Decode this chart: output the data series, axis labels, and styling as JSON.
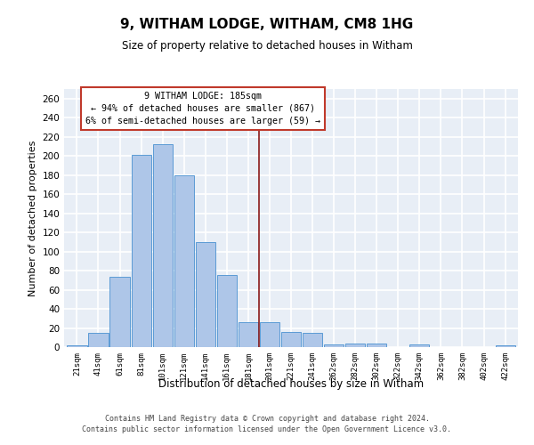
{
  "title": "9, WITHAM LODGE, WITHAM, CM8 1HG",
  "subtitle": "Size of property relative to detached houses in Witham",
  "xlabel": "Distribution of detached houses by size in Witham",
  "ylabel": "Number of detached properties",
  "categories": [
    "21sqm",
    "41sqm",
    "61sqm",
    "81sqm",
    "101sqm",
    "121sqm",
    "141sqm",
    "161sqm",
    "181sqm",
    "201sqm",
    "221sqm",
    "241sqm",
    "262sqm",
    "282sqm",
    "302sqm",
    "322sqm",
    "342sqm",
    "362sqm",
    "382sqm",
    "402sqm",
    "422sqm"
  ],
  "values": [
    2,
    15,
    74,
    201,
    212,
    180,
    110,
    75,
    26,
    26,
    16,
    15,
    3,
    4,
    4,
    0,
    3,
    0,
    0,
    0,
    2
  ],
  "bar_color": "#aec6e8",
  "bar_edge_color": "#5b9bd5",
  "vline_x": 8.5,
  "vline_color": "#8b1a1a",
  "annotation_title": "9 WITHAM LODGE: 185sqm",
  "annotation_line2": "← 94% of detached houses are smaller (867)",
  "annotation_line3": "6% of semi-detached houses are larger (59) →",
  "annotation_box_color": "#c0392b",
  "ylim": [
    0,
    270
  ],
  "yticks": [
    0,
    20,
    40,
    60,
    80,
    100,
    120,
    140,
    160,
    180,
    200,
    220,
    240,
    260
  ],
  "background_color": "#e8eef6",
  "grid_color": "#ffffff",
  "footer_line1": "Contains HM Land Registry data © Crown copyright and database right 2024.",
  "footer_line2": "Contains public sector information licensed under the Open Government Licence v3.0."
}
